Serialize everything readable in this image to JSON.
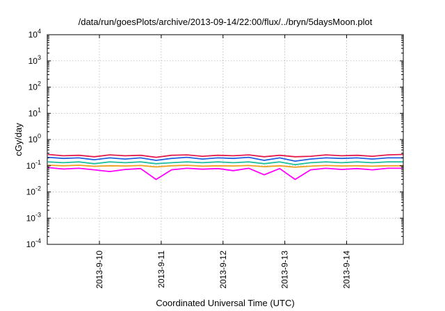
{
  "chart_data": {
    "type": "line",
    "title": "/data/run/goesPlots/archive/2013-09-14/22:00/flux/../bryn/5daysMoon.plot",
    "xlabel": "Coordinated Universal Time (UTC)",
    "ylabel": "cGy/day",
    "yscale": "log",
    "ylim": [
      0.0001,
      10000
    ],
    "xlim": [
      "2013-09-09 03:45",
      "2013-09-14 22:00"
    ],
    "grid": true,
    "legend": "none",
    "x_ticks": [
      {
        "value": "2013-09-10 00:00",
        "label": "2013-9-10"
      },
      {
        "value": "2013-09-11 00:00",
        "label": "2013-9-11"
      },
      {
        "value": "2013-09-12 00:00",
        "label": "2013-9-12"
      },
      {
        "value": "2013-09-13 00:00",
        "label": "2013-9-13"
      },
      {
        "value": "2013-09-14 00:00",
        "label": "2013-9-14"
      }
    ],
    "y_ticks": [
      {
        "value": 0.0001,
        "base": "10",
        "exp": "-4"
      },
      {
        "value": 0.001,
        "base": "10",
        "exp": "-3"
      },
      {
        "value": 0.01,
        "base": "10",
        "exp": "-2"
      },
      {
        "value": 0.1,
        "base": "10",
        "exp": "-1"
      },
      {
        "value": 1,
        "base": "10",
        "exp": "0"
      },
      {
        "value": 10,
        "base": "10",
        "exp": "1"
      },
      {
        "value": 100,
        "base": "10",
        "exp": "2"
      },
      {
        "value": 1000,
        "base": "10",
        "exp": "3"
      },
      {
        "value": 10000,
        "base": "10",
        "exp": "4"
      }
    ],
    "series": [
      {
        "color": "#e6194b",
        "x": [
          "2013-09-09 04:00",
          "2013-09-09 10:00",
          "2013-09-09 16:00",
          "2013-09-09 22:00",
          "2013-09-10 04:00",
          "2013-09-10 10:00",
          "2013-09-10 16:00",
          "2013-09-10 22:00",
          "2013-09-11 04:00",
          "2013-09-11 10:00",
          "2013-09-11 16:00",
          "2013-09-11 22:00",
          "2013-09-12 04:00",
          "2013-09-12 10:00",
          "2013-09-12 16:00",
          "2013-09-12 22:00",
          "2013-09-13 04:00",
          "2013-09-13 10:00",
          "2013-09-13 16:00",
          "2013-09-13 22:00",
          "2013-09-14 04:00",
          "2013-09-14 10:00",
          "2013-09-14 16:00",
          "2013-09-14 22:00"
        ],
        "y": [
          0.27,
          0.24,
          0.25,
          0.22,
          0.26,
          0.24,
          0.25,
          0.21,
          0.25,
          0.26,
          0.23,
          0.25,
          0.24,
          0.26,
          0.22,
          0.25,
          0.22,
          0.23,
          0.26,
          0.24,
          0.25,
          0.23,
          0.26,
          0.27
        ]
      },
      {
        "color": "#2060e0",
        "x": [
          "2013-09-09 04:00",
          "2013-09-09 10:00",
          "2013-09-09 16:00",
          "2013-09-09 22:00",
          "2013-09-10 04:00",
          "2013-09-10 10:00",
          "2013-09-10 16:00",
          "2013-09-10 22:00",
          "2013-09-11 04:00",
          "2013-09-11 10:00",
          "2013-09-11 16:00",
          "2013-09-11 22:00",
          "2013-09-12 04:00",
          "2013-09-12 10:00",
          "2013-09-12 16:00",
          "2013-09-12 22:00",
          "2013-09-13 04:00",
          "2013-09-13 10:00",
          "2013-09-13 16:00",
          "2013-09-13 22:00",
          "2013-09-14 04:00",
          "2013-09-14 10:00",
          "2013-09-14 16:00",
          "2013-09-14 22:00"
        ],
        "y": [
          0.21,
          0.19,
          0.2,
          0.17,
          0.2,
          0.18,
          0.2,
          0.16,
          0.19,
          0.21,
          0.18,
          0.2,
          0.19,
          0.21,
          0.16,
          0.2,
          0.15,
          0.18,
          0.2,
          0.19,
          0.2,
          0.18,
          0.2,
          0.2
        ]
      },
      {
        "color": "#20c0a0",
        "x": [
          "2013-09-09 04:00",
          "2013-09-09 10:00",
          "2013-09-09 16:00",
          "2013-09-09 22:00",
          "2013-09-10 04:00",
          "2013-09-10 10:00",
          "2013-09-10 16:00",
          "2013-09-10 22:00",
          "2013-09-11 04:00",
          "2013-09-11 10:00",
          "2013-09-11 16:00",
          "2013-09-11 22:00",
          "2013-09-12 04:00",
          "2013-09-12 10:00",
          "2013-09-12 16:00",
          "2013-09-12 22:00",
          "2013-09-13 04:00",
          "2013-09-13 10:00",
          "2013-09-13 16:00",
          "2013-09-13 22:00",
          "2013-09-14 04:00",
          "2013-09-14 10:00",
          "2013-09-14 16:00",
          "2013-09-14 22:00"
        ],
        "y": [
          0.14,
          0.13,
          0.14,
          0.12,
          0.14,
          0.13,
          0.14,
          0.12,
          0.13,
          0.14,
          0.13,
          0.14,
          0.13,
          0.14,
          0.12,
          0.14,
          0.11,
          0.13,
          0.14,
          0.13,
          0.14,
          0.13,
          0.14,
          0.14
        ]
      },
      {
        "color": "#f0a020",
        "x": [
          "2013-09-09 04:00",
          "2013-09-09 10:00",
          "2013-09-09 16:00",
          "2013-09-09 22:00",
          "2013-09-10 04:00",
          "2013-09-10 10:00",
          "2013-09-10 16:00",
          "2013-09-10 22:00",
          "2013-09-11 04:00",
          "2013-09-11 10:00",
          "2013-09-11 16:00",
          "2013-09-11 22:00",
          "2013-09-12 04:00",
          "2013-09-12 10:00",
          "2013-09-12 16:00",
          "2013-09-12 22:00",
          "2013-09-13 04:00",
          "2013-09-13 10:00",
          "2013-09-13 16:00",
          "2013-09-13 22:00",
          "2013-09-14 04:00",
          "2013-09-14 10:00",
          "2013-09-14 16:00",
          "2013-09-14 22:00"
        ],
        "y": [
          0.105,
          0.1,
          0.105,
          0.095,
          0.1,
          0.098,
          0.102,
          0.09,
          0.1,
          0.104,
          0.096,
          0.1,
          0.098,
          0.102,
          0.092,
          0.1,
          0.088,
          0.096,
          0.102,
          0.098,
          0.1,
          0.096,
          0.1,
          0.1
        ]
      },
      {
        "color": "#ff00ff",
        "x": [
          "2013-09-09 04:00",
          "2013-09-09 10:00",
          "2013-09-09 16:00",
          "2013-09-09 22:00",
          "2013-09-10 04:00",
          "2013-09-10 10:00",
          "2013-09-10 16:00",
          "2013-09-10 22:00",
          "2013-09-11 04:00",
          "2013-09-11 10:00",
          "2013-09-11 16:00",
          "2013-09-11 22:00",
          "2013-09-12 04:00",
          "2013-09-12 10:00",
          "2013-09-12 16:00",
          "2013-09-12 22:00",
          "2013-09-13 04:00",
          "2013-09-13 10:00",
          "2013-09-13 16:00",
          "2013-09-13 22:00",
          "2013-09-14 04:00",
          "2013-09-14 10:00",
          "2013-09-14 16:00",
          "2013-09-14 22:00"
        ],
        "y": [
          0.085,
          0.075,
          0.08,
          0.07,
          0.06,
          0.072,
          0.078,
          0.03,
          0.07,
          0.08,
          0.074,
          0.078,
          0.065,
          0.08,
          0.045,
          0.078,
          0.03,
          0.07,
          0.08,
          0.072,
          0.078,
          0.07,
          0.08,
          0.08
        ]
      }
    ]
  }
}
